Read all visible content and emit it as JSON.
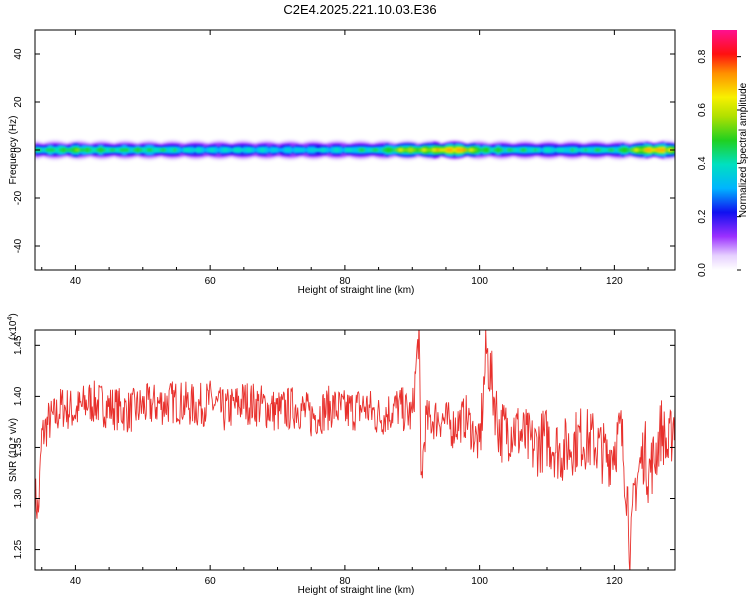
{
  "title": "C2E4.2025.221.10.03.E36",
  "chart_data": [
    {
      "type": "heatmap",
      "xlabel": "Height of straight line (km)",
      "ylabel": "Frequency (Hz)",
      "xlim": [
        34,
        129
      ],
      "ylim": [
        -50,
        50
      ],
      "x_ticks": [
        "40",
        "60",
        "80",
        "100",
        "120"
      ],
      "y_ticks": [
        "40",
        "20",
        "0",
        "-20",
        "-40"
      ],
      "colorbar": {
        "label": "Normalized spectral amplitude",
        "range": [
          0,
          0.9
        ],
        "ticks": [
          "0.0",
          "0.2",
          "0.4",
          "0.6",
          "0.8"
        ]
      },
      "band_center_hz": 0,
      "band_halfwidth_hz": 4,
      "peak_amplitude_profile": {
        "x": [
          35,
          40,
          45,
          50,
          55,
          60,
          65,
          70,
          75,
          80,
          85,
          88,
          90,
          93,
          95,
          97,
          98,
          100,
          105,
          110,
          115,
          120,
          123,
          125,
          127,
          129
        ],
        "values": [
          0.55,
          0.62,
          0.55,
          0.58,
          0.5,
          0.48,
          0.5,
          0.47,
          0.48,
          0.5,
          0.55,
          0.7,
          0.68,
          0.75,
          0.85,
          0.88,
          0.75,
          0.6,
          0.55,
          0.5,
          0.52,
          0.55,
          0.7,
          0.85,
          0.88,
          0.6
        ]
      }
    },
    {
      "type": "line",
      "xlabel": "Height of straight line (km)",
      "ylabel": "SNR (10 * v/v)",
      "y_multiplier": "(x10",
      "y_multiplier_exp": "4",
      "y_multiplier_close": ")",
      "xlim": [
        34,
        129
      ],
      "ylim": [
        12300,
        14650
      ],
      "x_ticks": [
        "40",
        "60",
        "80",
        "100",
        "120"
      ],
      "y_ticks": [
        "1.25",
        "1.30",
        "1.35",
        "1.40",
        "1.45"
      ],
      "series": [
        {
          "color": "#e8302c",
          "x": [
            34,
            34.5,
            35,
            36,
            37,
            38,
            40,
            42,
            45,
            48,
            50,
            55,
            58,
            60,
            62,
            65,
            68,
            70,
            73,
            75,
            78,
            80,
            83,
            85,
            88,
            90,
            91,
            91.3,
            92,
            94,
            96,
            98,
            100,
            101,
            103,
            105,
            108,
            110,
            112,
            115,
            117,
            119,
            121,
            122,
            122.4,
            123,
            124.5,
            125,
            126,
            127,
            128,
            129
          ],
          "values": [
            13050,
            12850,
            13600,
            13750,
            13800,
            13900,
            13850,
            13950,
            13900,
            13850,
            13900,
            13950,
            13900,
            13950,
            13850,
            13950,
            13900,
            13850,
            13900,
            13800,
            13900,
            13850,
            13900,
            13800,
            13900,
            13800,
            14650,
            13150,
            13750,
            13800,
            13700,
            13800,
            13500,
            14450,
            13650,
            13700,
            13500,
            13600,
            13450,
            13600,
            13550,
            13400,
            13650,
            13000,
            12400,
            13100,
            13500,
            13250,
            13400,
            13700,
            13450,
            13850
          ],
          "noise_amplitude": 220,
          "samples_per_km": 10
        }
      ]
    }
  ]
}
